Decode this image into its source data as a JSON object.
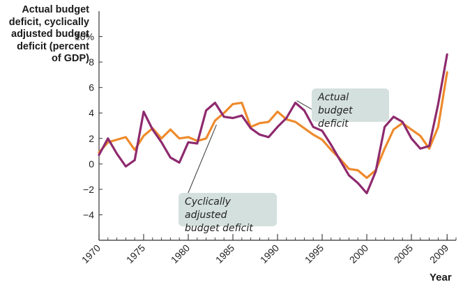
{
  "chart_data": {
    "type": "line",
    "ylabel_lines": [
      "Actual budget",
      "deficit, cyclically",
      "adjusted budget",
      "deficit (percent",
      "of GDP)"
    ],
    "xlabel": "Year",
    "xlim": [
      1970,
      2010
    ],
    "ylim": [
      -6,
      12
    ],
    "y_ticks": [
      {
        "value": 10,
        "label": "10%"
      },
      {
        "value": 8,
        "label": "8"
      },
      {
        "value": 6,
        "label": "6"
      },
      {
        "value": 4,
        "label": "4"
      },
      {
        "value": 2,
        "label": "2"
      },
      {
        "value": 0,
        "label": "0"
      },
      {
        "value": -2,
        "label": "−2"
      },
      {
        "value": -4,
        "label": "−4"
      }
    ],
    "x_ticks": [
      {
        "value": 1970,
        "label": "1970"
      },
      {
        "value": 1975,
        "label": "1975"
      },
      {
        "value": 1980,
        "label": "1980"
      },
      {
        "value": 1985,
        "label": "1985"
      },
      {
        "value": 1990,
        "label": "1990"
      },
      {
        "value": 1995,
        "label": "1995"
      },
      {
        "value": 2000,
        "label": "2000"
      },
      {
        "value": 2005,
        "label": "2005"
      },
      {
        "value": 2009,
        "label": "2009"
      }
    ],
    "grid": false,
    "series": [
      {
        "name": "Cyclically adjusted budget deficit",
        "color": "#ee8a2c",
        "x": [
          1970,
          1971,
          1972,
          1973,
          1974,
          1975,
          1976,
          1977,
          1978,
          1979,
          1980,
          1981,
          1982,
          1983,
          1984,
          1985,
          1986,
          1987,
          1988,
          1989,
          1990,
          1991,
          1992,
          1993,
          1994,
          1995,
          1996,
          1997,
          1998,
          1999,
          2000,
          2001,
          2002,
          2003,
          2004,
          2005,
          2006,
          2007,
          2008,
          2009
        ],
        "values": [
          0.9,
          1.7,
          1.9,
          2.1,
          1.1,
          2.2,
          2.8,
          2.0,
          2.7,
          2.0,
          2.1,
          1.8,
          2.0,
          3.4,
          4.0,
          4.7,
          4.8,
          2.9,
          3.2,
          3.3,
          4.1,
          3.5,
          3.3,
          2.8,
          2.3,
          1.9,
          1.1,
          0.4,
          -0.4,
          -0.5,
          -1.1,
          -0.5,
          1.2,
          2.7,
          3.2,
          2.7,
          2.2,
          1.2,
          2.9,
          7.2
        ]
      },
      {
        "name": "Actual budget deficit",
        "color": "#8e2a6e",
        "x": [
          1970,
          1971,
          1972,
          1973,
          1974,
          1975,
          1976,
          1977,
          1978,
          1979,
          1980,
          1981,
          1982,
          1983,
          1984,
          1985,
          1986,
          1987,
          1988,
          1989,
          1990,
          1991,
          1992,
          1993,
          1994,
          1995,
          1996,
          1997,
          1998,
          1999,
          2000,
          2001,
          2002,
          2003,
          2004,
          2005,
          2006,
          2007,
          2008,
          2009
        ],
        "values": [
          0.7,
          2.0,
          0.8,
          -0.2,
          0.3,
          4.1,
          2.7,
          1.7,
          0.5,
          0.1,
          1.7,
          1.6,
          4.2,
          4.8,
          3.7,
          3.6,
          3.8,
          2.8,
          2.3,
          2.1,
          2.9,
          3.6,
          4.8,
          4.2,
          2.9,
          2.6,
          1.5,
          0.3,
          -0.9,
          -1.5,
          -2.3,
          -0.6,
          2.9,
          3.7,
          3.3,
          2.0,
          1.2,
          1.4,
          4.7,
          8.6
        ]
      }
    ],
    "annotations": [
      {
        "lines": [
          "Actual budget",
          "deficit"
        ],
        "series": "Actual budget deficit"
      },
      {
        "lines": [
          "Cyclically adjusted",
          "budget deficit"
        ],
        "series": "Cyclically adjusted budget deficit"
      }
    ]
  }
}
